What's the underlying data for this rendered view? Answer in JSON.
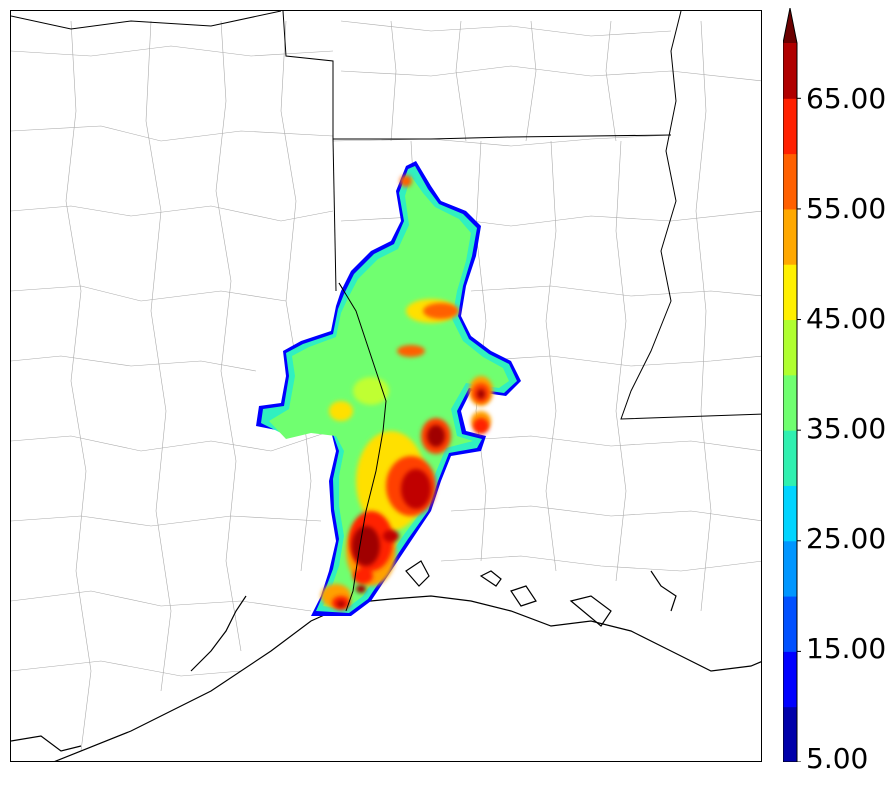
{
  "colorbar": {
    "labels": [
      "5.00",
      "15.00",
      "25.00",
      "35.00",
      "45.00",
      "55.00",
      "65.00"
    ],
    "colors": [
      "#0000aa",
      "#0000ff",
      "#0050ff",
      "#0096ff",
      "#00d4ff",
      "#30f0b0",
      "#70ff70",
      "#b0ff30",
      "#fff000",
      "#ffa800",
      "#ff6000",
      "#ff2000",
      "#b00000"
    ],
    "extend_color": "#6b0000"
  },
  "map": {
    "title": "",
    "features": {
      "land_color": "#ffffff",
      "county_line_color": "#aaaaaa",
      "state_line_color": "#000000",
      "coast_line_color": "#000000"
    }
  }
}
